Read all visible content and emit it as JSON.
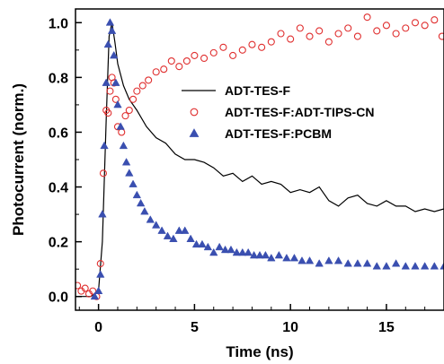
{
  "chart_data": {
    "type": "line",
    "title": "",
    "xlabel": "Time (ns)",
    "ylabel": "Photocurrent (norm.)",
    "xlim": [
      -1.2,
      18
    ],
    "ylim": [
      -0.05,
      1.05
    ],
    "x_ticks": [
      0,
      5,
      10,
      15
    ],
    "x_tick_labels": [
      "0",
      "5",
      "10",
      "15"
    ],
    "y_ticks": [
      0.0,
      0.2,
      0.4,
      0.6,
      0.8,
      1.0
    ],
    "y_tick_labels": [
      "0.0",
      "0.2",
      "0.4",
      "0.6",
      "0.8",
      "1.0"
    ],
    "grid": false,
    "legend_position": "right-middle",
    "series": [
      {
        "name": "ADT-TES-F",
        "style": "line",
        "color": "#000000",
        "x": [
          -1.2,
          -0.8,
          -0.4,
          0.0,
          0.2,
          0.4,
          0.55,
          0.7,
          0.85,
          1.0,
          1.3,
          1.6,
          2.0,
          2.5,
          3.0,
          3.5,
          4.0,
          4.5,
          5.0,
          5.5,
          6.0,
          6.5,
          7.0,
          7.5,
          8.0,
          8.5,
          9.0,
          9.5,
          10.0,
          10.5,
          11.0,
          11.5,
          12.0,
          12.5,
          13.0,
          13.5,
          14.0,
          14.5,
          15.0,
          15.5,
          16.0,
          16.5,
          17.0,
          17.5,
          18.0
        ],
        "y": [
          0.0,
          0.0,
          0.0,
          0.02,
          0.2,
          0.65,
          0.95,
          1.0,
          0.93,
          0.85,
          0.77,
          0.72,
          0.68,
          0.62,
          0.58,
          0.56,
          0.52,
          0.5,
          0.5,
          0.49,
          0.47,
          0.44,
          0.45,
          0.42,
          0.44,
          0.41,
          0.42,
          0.41,
          0.38,
          0.39,
          0.38,
          0.4,
          0.35,
          0.33,
          0.36,
          0.37,
          0.34,
          0.33,
          0.35,
          0.33,
          0.33,
          0.31,
          0.32,
          0.31,
          0.32
        ]
      },
      {
        "name": "ADT-TES-F:ADT-TIPS-CN",
        "style": "open-circles",
        "color": "#e03030",
        "x": [
          -1.1,
          -0.9,
          -0.7,
          -0.5,
          -0.3,
          -0.1,
          0.1,
          0.25,
          0.4,
          0.5,
          0.6,
          0.7,
          0.8,
          0.9,
          1.0,
          1.2,
          1.4,
          1.6,
          1.8,
          2.0,
          2.3,
          2.6,
          3.0,
          3.4,
          3.8,
          4.2,
          4.6,
          5.0,
          5.5,
          6.0,
          6.5,
          7.0,
          7.5,
          8.0,
          8.5,
          9.0,
          9.5,
          10.0,
          10.5,
          11.0,
          11.5,
          12.0,
          12.5,
          13.0,
          13.5,
          14.0,
          14.5,
          15.0,
          15.5,
          16.0,
          16.5,
          17.0,
          17.5,
          17.9
        ],
        "y": [
          0.04,
          0.02,
          0.03,
          0.01,
          0.02,
          0.0,
          0.12,
          0.45,
          0.68,
          0.67,
          0.75,
          0.8,
          0.78,
          0.72,
          0.62,
          0.6,
          0.66,
          0.68,
          0.72,
          0.75,
          0.77,
          0.79,
          0.82,
          0.83,
          0.86,
          0.84,
          0.86,
          0.88,
          0.87,
          0.89,
          0.91,
          0.88,
          0.9,
          0.92,
          0.91,
          0.93,
          0.96,
          0.94,
          0.98,
          0.95,
          0.97,
          0.93,
          0.96,
          0.98,
          0.95,
          1.02,
          0.97,
          0.99,
          0.96,
          0.98,
          1.0,
          0.99,
          1.01,
          0.95
        ]
      },
      {
        "name": "ADT-TES-F:PCBM",
        "style": "filled-triangles",
        "color": "#3a4fb0",
        "x": [
          -0.2,
          0.0,
          0.1,
          0.2,
          0.3,
          0.4,
          0.5,
          0.6,
          0.7,
          0.8,
          0.9,
          1.0,
          1.15,
          1.3,
          1.45,
          1.6,
          1.8,
          2.0,
          2.2,
          2.4,
          2.7,
          3.0,
          3.3,
          3.6,
          3.9,
          4.2,
          4.5,
          4.8,
          5.1,
          5.4,
          5.7,
          6.0,
          6.3,
          6.6,
          6.9,
          7.2,
          7.5,
          7.8,
          8.1,
          8.4,
          8.7,
          9.0,
          9.4,
          9.8,
          10.2,
          10.6,
          11.0,
          11.5,
          12.0,
          12.5,
          13.0,
          13.5,
          14.0,
          14.5,
          15.0,
          15.5,
          16.0,
          16.5,
          17.0,
          17.5,
          18.0
        ],
        "y": [
          0.0,
          0.02,
          0.08,
          0.3,
          0.55,
          0.78,
          0.92,
          1.0,
          0.97,
          0.88,
          0.78,
          0.7,
          0.62,
          0.55,
          0.49,
          0.45,
          0.41,
          0.37,
          0.34,
          0.31,
          0.28,
          0.26,
          0.24,
          0.22,
          0.21,
          0.24,
          0.24,
          0.21,
          0.19,
          0.19,
          0.18,
          0.16,
          0.18,
          0.17,
          0.17,
          0.16,
          0.16,
          0.16,
          0.15,
          0.15,
          0.15,
          0.14,
          0.15,
          0.14,
          0.14,
          0.13,
          0.13,
          0.12,
          0.13,
          0.13,
          0.12,
          0.12,
          0.12,
          0.11,
          0.11,
          0.12,
          0.11,
          0.11,
          0.11,
          0.11,
          0.11
        ]
      }
    ]
  }
}
